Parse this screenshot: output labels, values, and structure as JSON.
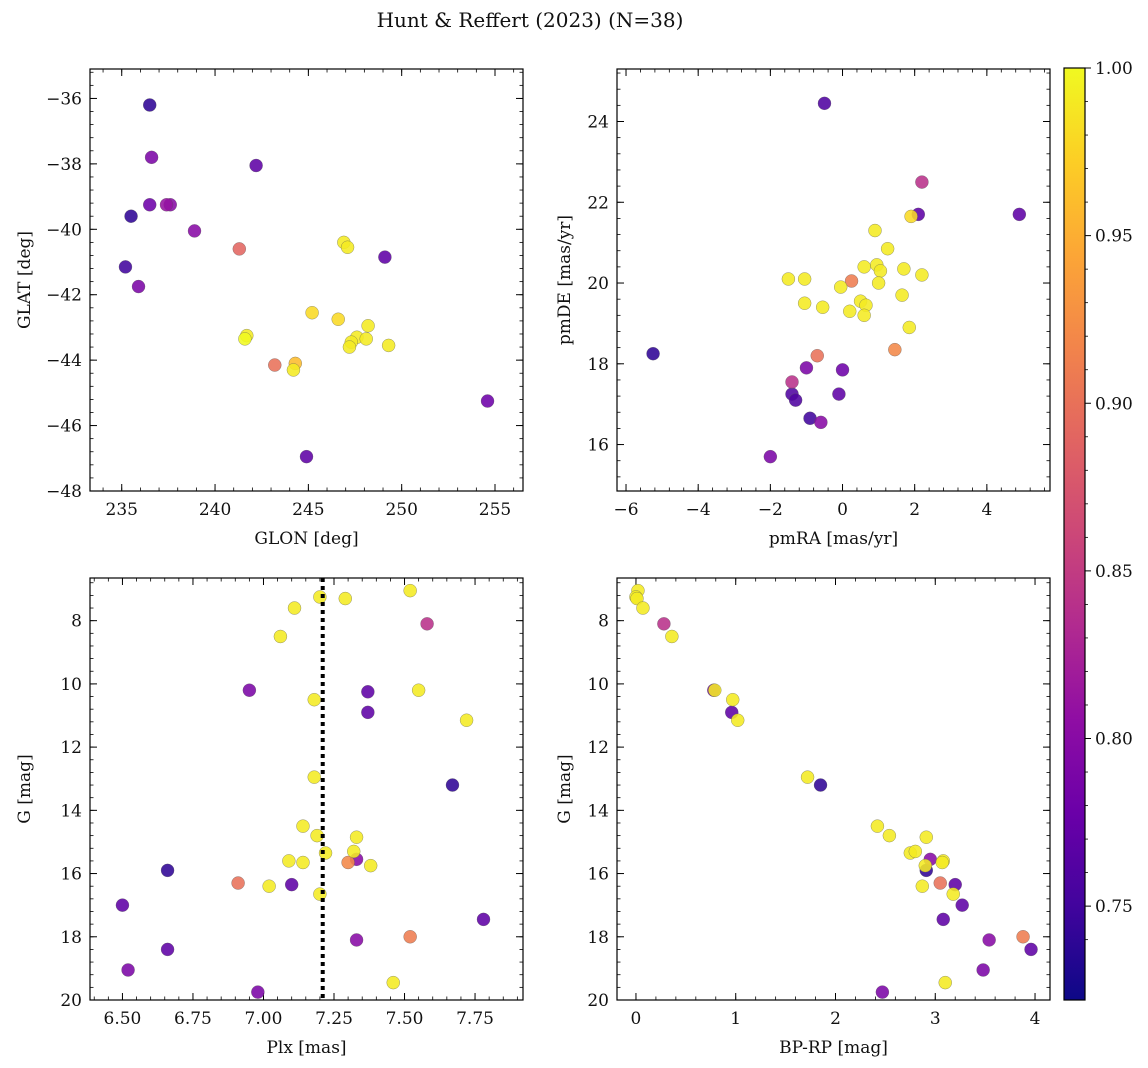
{
  "title": "Hunt & Reffert (2023) (N=38)",
  "colorbar": {
    "range": [
      0.722,
      1.0
    ],
    "ticks": [
      0.75,
      0.8,
      0.85,
      0.9,
      0.95,
      1.0
    ],
    "tick_labels": [
      "0.75",
      "0.80",
      "0.85",
      "0.90",
      "0.95",
      "1.00"
    ],
    "colormap": "plasma"
  },
  "chart_data": [
    {
      "type": "scatter",
      "xlabel": "GLON [deg]",
      "ylabel": "GLAT [deg]",
      "xlim": [
        233.3,
        256.5
      ],
      "ylim": [
        -48,
        -35.1
      ],
      "xticks": [
        235,
        240,
        245,
        250,
        255
      ],
      "yticks": [
        -48,
        -46,
        -44,
        -42,
        -40,
        -38,
        -36
      ],
      "points": [
        {
          "x": 236.5,
          "y": -36.2,
          "c": 0.74
        },
        {
          "x": 236.6,
          "y": -37.8,
          "c": 0.79
        },
        {
          "x": 242.2,
          "y": -38.05,
          "c": 0.77
        },
        {
          "x": 236.5,
          "y": -39.25,
          "c": 0.78
        },
        {
          "x": 237.4,
          "y": -39.25,
          "c": 0.81
        },
        {
          "x": 237.6,
          "y": -39.25,
          "c": 0.8
        },
        {
          "x": 235.5,
          "y": -39.6,
          "c": 0.74
        },
        {
          "x": 238.9,
          "y": -40.05,
          "c": 0.8
        },
        {
          "x": 241.3,
          "y": -40.6,
          "c": 0.89
        },
        {
          "x": 235.2,
          "y": -41.15,
          "c": 0.75
        },
        {
          "x": 235.9,
          "y": -41.75,
          "c": 0.79
        },
        {
          "x": 246.9,
          "y": -40.4,
          "c": 0.99
        },
        {
          "x": 247.1,
          "y": -40.55,
          "c": 0.99
        },
        {
          "x": 249.1,
          "y": -40.85,
          "c": 0.77
        },
        {
          "x": 245.2,
          "y": -42.55,
          "c": 0.98
        },
        {
          "x": 246.6,
          "y": -42.75,
          "c": 0.98
        },
        {
          "x": 248.2,
          "y": -42.95,
          "c": 0.99
        },
        {
          "x": 241.7,
          "y": -43.25,
          "c": 0.99
        },
        {
          "x": 241.6,
          "y": -43.35,
          "c": 1.0
        },
        {
          "x": 247.6,
          "y": -43.3,
          "c": 0.99
        },
        {
          "x": 248.1,
          "y": -43.35,
          "c": 0.99
        },
        {
          "x": 247.3,
          "y": -43.45,
          "c": 0.99
        },
        {
          "x": 247.2,
          "y": -43.6,
          "c": 0.99
        },
        {
          "x": 249.3,
          "y": -43.55,
          "c": 0.99
        },
        {
          "x": 244.3,
          "y": -44.1,
          "c": 0.96
        },
        {
          "x": 243.2,
          "y": -44.15,
          "c": 0.9
        },
        {
          "x": 244.2,
          "y": -44.3,
          "c": 0.99
        },
        {
          "x": 254.6,
          "y": -45.25,
          "c": 0.78
        },
        {
          "x": 244.9,
          "y": -46.95,
          "c": 0.77
        }
      ]
    },
    {
      "type": "scatter",
      "xlabel": "pmRA [mas/yr]",
      "ylabel": "pmDE [mas/yr]",
      "xlim": [
        -6.25,
        5.75
      ],
      "ylim": [
        14.85,
        25.3
      ],
      "xticks": [
        -6,
        -4,
        -2,
        0,
        2,
        4
      ],
      "yticks": [
        16,
        18,
        20,
        22,
        24
      ],
      "points": [
        {
          "x": -0.5,
          "y": 24.45,
          "c": 0.76
        },
        {
          "x": 2.2,
          "y": 22.5,
          "c": 0.84
        },
        {
          "x": 2.1,
          "y": 21.7,
          "c": 0.77
        },
        {
          "x": 4.9,
          "y": 21.7,
          "c": 0.77
        },
        {
          "x": 1.9,
          "y": 21.65,
          "c": 0.98
        },
        {
          "x": 0.9,
          "y": 21.3,
          "c": 0.99
        },
        {
          "x": 1.25,
          "y": 20.85,
          "c": 0.99
        },
        {
          "x": 0.6,
          "y": 20.4,
          "c": 0.99
        },
        {
          "x": 0.95,
          "y": 20.45,
          "c": 0.99
        },
        {
          "x": 1.05,
          "y": 20.3,
          "c": 0.99
        },
        {
          "x": 1.7,
          "y": 20.35,
          "c": 0.99
        },
        {
          "x": 2.2,
          "y": 20.2,
          "c": 0.99
        },
        {
          "x": -1.5,
          "y": 20.1,
          "c": 0.99
        },
        {
          "x": -1.05,
          "y": 20.1,
          "c": 0.99
        },
        {
          "x": 0.25,
          "y": 20.05,
          "c": 0.91
        },
        {
          "x": 1.0,
          "y": 20.0,
          "c": 0.99
        },
        {
          "x": -0.05,
          "y": 19.9,
          "c": 0.99
        },
        {
          "x": 1.65,
          "y": 19.7,
          "c": 0.99
        },
        {
          "x": 0.5,
          "y": 19.55,
          "c": 0.99
        },
        {
          "x": -1.05,
          "y": 19.5,
          "c": 0.99
        },
        {
          "x": 0.65,
          "y": 19.45,
          "c": 0.99
        },
        {
          "x": -0.55,
          "y": 19.4,
          "c": 0.99
        },
        {
          "x": 0.2,
          "y": 19.3,
          "c": 0.99
        },
        {
          "x": 0.6,
          "y": 19.2,
          "c": 0.99
        },
        {
          "x": 1.85,
          "y": 18.9,
          "c": 0.99
        },
        {
          "x": 1.45,
          "y": 18.35,
          "c": 0.92
        },
        {
          "x": -5.25,
          "y": 18.25,
          "c": 0.74
        },
        {
          "x": -0.7,
          "y": 18.2,
          "c": 0.9
        },
        {
          "x": -1.0,
          "y": 17.9,
          "c": 0.79
        },
        {
          "x": 0.0,
          "y": 17.85,
          "c": 0.78
        },
        {
          "x": -1.4,
          "y": 17.55,
          "c": 0.84
        },
        {
          "x": -1.4,
          "y": 17.25,
          "c": 0.76
        },
        {
          "x": -0.1,
          "y": 17.25,
          "c": 0.77
        },
        {
          "x": -1.3,
          "y": 17.1,
          "c": 0.76
        },
        {
          "x": -0.9,
          "y": 16.65,
          "c": 0.75
        },
        {
          "x": -0.6,
          "y": 16.55,
          "c": 0.8
        },
        {
          "x": -2.0,
          "y": 15.7,
          "c": 0.79
        }
      ]
    },
    {
      "type": "scatter",
      "xlabel": "Plx [mas]",
      "ylabel": "G [mag]",
      "xlim": [
        6.385,
        7.92
      ],
      "ylim": [
        20,
        6.65
      ],
      "y_inverted": true,
      "xticks": [
        6.5,
        6.75,
        7.0,
        7.25,
        7.5,
        7.75
      ],
      "xtick_labels": [
        "6.50",
        "6.75",
        "7.00",
        "7.25",
        "7.50",
        "7.75"
      ],
      "yticks": [
        8,
        10,
        12,
        14,
        16,
        18,
        20
      ],
      "vline": {
        "x": 7.21,
        "style": "dotted"
      },
      "points": [
        {
          "x": 7.52,
          "y": 7.05,
          "c": 0.99
        },
        {
          "x": 7.2,
          "y": 7.25,
          "c": 0.99
        },
        {
          "x": 7.29,
          "y": 7.3,
          "c": 0.99
        },
        {
          "x": 7.11,
          "y": 7.6,
          "c": 0.99
        },
        {
          "x": 7.58,
          "y": 8.1,
          "c": 0.84
        },
        {
          "x": 7.06,
          "y": 8.5,
          "c": 0.99
        },
        {
          "x": 6.95,
          "y": 10.2,
          "c": 0.79
        },
        {
          "x": 7.55,
          "y": 10.2,
          "c": 0.99
        },
        {
          "x": 7.37,
          "y": 10.25,
          "c": 0.77
        },
        {
          "x": 7.18,
          "y": 10.5,
          "c": 0.99
        },
        {
          "x": 7.37,
          "y": 10.9,
          "c": 0.77
        },
        {
          "x": 7.72,
          "y": 11.15,
          "c": 0.99
        },
        {
          "x": 7.67,
          "y": 13.2,
          "c": 0.74
        },
        {
          "x": 7.18,
          "y": 12.95,
          "c": 0.99
        },
        {
          "x": 7.14,
          "y": 14.5,
          "c": 0.99
        },
        {
          "x": 7.19,
          "y": 14.8,
          "c": 0.99
        },
        {
          "x": 7.33,
          "y": 14.85,
          "c": 0.99
        },
        {
          "x": 7.32,
          "y": 15.3,
          "c": 0.99
        },
        {
          "x": 7.22,
          "y": 15.35,
          "c": 0.99
        },
        {
          "x": 7.33,
          "y": 15.55,
          "c": 0.8
        },
        {
          "x": 7.09,
          "y": 15.6,
          "c": 0.99
        },
        {
          "x": 7.14,
          "y": 15.65,
          "c": 0.99
        },
        {
          "x": 7.3,
          "y": 15.65,
          "c": 0.92
        },
        {
          "x": 7.38,
          "y": 15.75,
          "c": 0.99
        },
        {
          "x": 6.66,
          "y": 15.9,
          "c": 0.74
        },
        {
          "x": 6.91,
          "y": 16.3,
          "c": 0.9
        },
        {
          "x": 7.1,
          "y": 16.35,
          "c": 0.77
        },
        {
          "x": 7.02,
          "y": 16.4,
          "c": 0.99
        },
        {
          "x": 7.2,
          "y": 16.65,
          "c": 0.99
        },
        {
          "x": 6.5,
          "y": 17.0,
          "c": 0.77
        },
        {
          "x": 7.78,
          "y": 17.45,
          "c": 0.77
        },
        {
          "x": 7.52,
          "y": 18.0,
          "c": 0.91
        },
        {
          "x": 7.33,
          "y": 18.1,
          "c": 0.8
        },
        {
          "x": 6.66,
          "y": 18.4,
          "c": 0.77
        },
        {
          "x": 6.52,
          "y": 19.05,
          "c": 0.79
        },
        {
          "x": 7.46,
          "y": 19.45,
          "c": 0.99
        },
        {
          "x": 6.98,
          "y": 19.75,
          "c": 0.79
        }
      ]
    },
    {
      "type": "scatter",
      "xlabel": "BP-RP [mag]",
      "ylabel": "G [mag]",
      "xlim": [
        -0.19,
        4.15
      ],
      "ylim": [
        20,
        6.65
      ],
      "y_inverted": true,
      "xticks": [
        0,
        1,
        2,
        3,
        4
      ],
      "yticks": [
        8,
        10,
        12,
        14,
        16,
        18,
        20
      ],
      "points": [
        {
          "x": 0.02,
          "y": 7.05,
          "c": 0.99
        },
        {
          "x": 0.0,
          "y": 7.25,
          "c": 0.99
        },
        {
          "x": 0.01,
          "y": 7.3,
          "c": 0.99
        },
        {
          "x": 0.07,
          "y": 7.6,
          "c": 0.99
        },
        {
          "x": 0.28,
          "y": 8.1,
          "c": 0.84
        },
        {
          "x": 0.36,
          "y": 8.5,
          "c": 0.99
        },
        {
          "x": 0.78,
          "y": 10.2,
          "c": 0.79
        },
        {
          "x": 0.79,
          "y": 10.2,
          "c": 0.99
        },
        {
          "x": 0.97,
          "y": 10.5,
          "c": 0.99
        },
        {
          "x": 0.96,
          "y": 10.9,
          "c": 0.77
        },
        {
          "x": 1.02,
          "y": 11.15,
          "c": 0.99
        },
        {
          "x": 1.72,
          "y": 12.95,
          "c": 0.99
        },
        {
          "x": 1.85,
          "y": 13.2,
          "c": 0.74
        },
        {
          "x": 2.42,
          "y": 14.5,
          "c": 0.99
        },
        {
          "x": 2.54,
          "y": 14.8,
          "c": 0.99
        },
        {
          "x": 2.91,
          "y": 14.85,
          "c": 0.99
        },
        {
          "x": 2.75,
          "y": 15.35,
          "c": 0.99
        },
        {
          "x": 2.8,
          "y": 15.3,
          "c": 0.99
        },
        {
          "x": 2.95,
          "y": 15.55,
          "c": 0.8
        },
        {
          "x": 3.08,
          "y": 15.6,
          "c": 0.99
        },
        {
          "x": 3.07,
          "y": 15.65,
          "c": 0.99
        },
        {
          "x": 2.9,
          "y": 15.75,
          "c": 0.99
        },
        {
          "x": 2.91,
          "y": 15.9,
          "c": 0.74
        },
        {
          "x": 3.05,
          "y": 16.3,
          "c": 0.9
        },
        {
          "x": 3.2,
          "y": 16.35,
          "c": 0.77
        },
        {
          "x": 2.87,
          "y": 16.4,
          "c": 0.99
        },
        {
          "x": 3.18,
          "y": 16.65,
          "c": 0.99
        },
        {
          "x": 3.27,
          "y": 17.0,
          "c": 0.77
        },
        {
          "x": 3.08,
          "y": 17.45,
          "c": 0.77
        },
        {
          "x": 3.88,
          "y": 18.0,
          "c": 0.91
        },
        {
          "x": 3.54,
          "y": 18.1,
          "c": 0.8
        },
        {
          "x": 3.96,
          "y": 18.4,
          "c": 0.77
        },
        {
          "x": 3.48,
          "y": 19.05,
          "c": 0.79
        },
        {
          "x": 3.1,
          "y": 19.45,
          "c": 0.99
        },
        {
          "x": 2.47,
          "y": 19.75,
          "c": 0.79
        }
      ]
    }
  ]
}
